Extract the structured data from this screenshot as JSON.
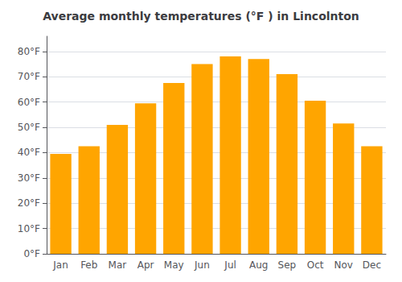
{
  "chart_data": {
    "type": "bar",
    "title": "Average monthly temperatures (°F ) in Lincolnton",
    "categories": [
      "Jan",
      "Feb",
      "Mar",
      "Apr",
      "May",
      "Jun",
      "Jul",
      "Aug",
      "Sep",
      "Oct",
      "Nov",
      "Dec"
    ],
    "values": [
      39.5,
      42.5,
      51.0,
      59.5,
      67.5,
      75.0,
      78.0,
      77.0,
      71.0,
      60.5,
      51.5,
      42.5
    ],
    "color": "#FFA500",
    "ylim": [
      0,
      86
    ],
    "yticks": [
      {
        "value": 0,
        "label": "0°F"
      },
      {
        "value": 10,
        "label": "10°F"
      },
      {
        "value": 20,
        "label": "20°F"
      },
      {
        "value": 30,
        "label": "30°F"
      },
      {
        "value": 40,
        "label": "40°F"
      },
      {
        "value": 50,
        "label": "50°F"
      },
      {
        "value": 60,
        "label": "60°F"
      },
      {
        "value": 70,
        "label": "70°F"
      },
      {
        "value": 80,
        "label": "80°F"
      }
    ],
    "grid": true
  }
}
